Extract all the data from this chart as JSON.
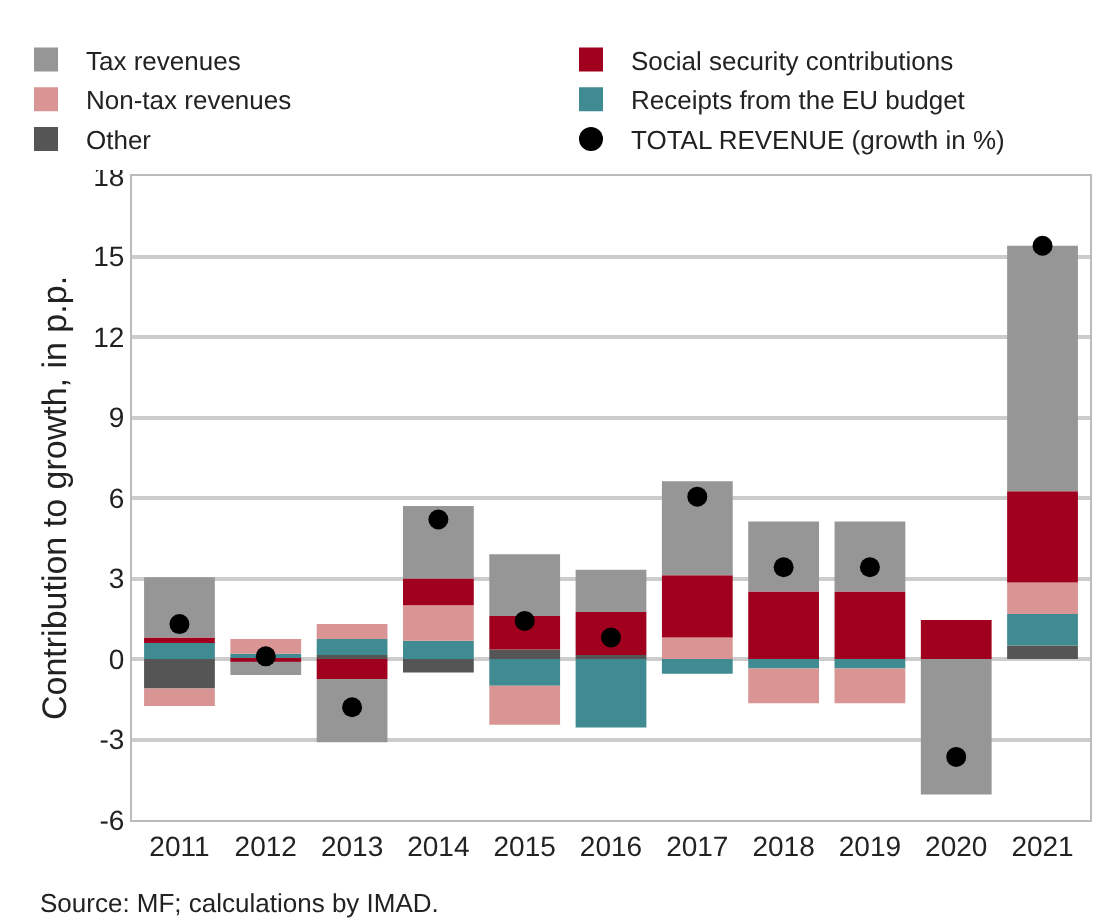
{
  "chart_data": {
    "type": "bar",
    "stacked": true,
    "ylabel": "Contribution to growth, in p.p.",
    "categories": [
      "2011",
      "2012",
      "2013",
      "2014",
      "2015",
      "2016",
      "2017",
      "2018",
      "2019",
      "2020",
      "2021"
    ],
    "series": [
      {
        "name": "Other",
        "color": "#555555",
        "values": [
          -1.1,
          0,
          0.15,
          -0.5,
          0.35,
          0.15,
          0,
          0,
          0,
          0,
          0.5
        ]
      },
      {
        "name": "Receipts from the EU budget",
        "color": "#3f8b91",
        "values": [
          0.6,
          0.2,
          0.6,
          0.68,
          -1.0,
          -2.55,
          -0.55,
          -0.35,
          -0.35,
          0,
          1.18
        ]
      },
      {
        "name": "Non-tax revenues",
        "color": "#d99594",
        "values": [
          -0.65,
          0.55,
          0.55,
          1.32,
          -1.45,
          0,
          0.8,
          -1.3,
          -1.3,
          0,
          1.17
        ]
      },
      {
        "name": "Social security contributions",
        "color": "#a0001e",
        "values": [
          0.2,
          -0.1,
          -0.75,
          1.0,
          1.25,
          1.6,
          2.32,
          2.52,
          2.52,
          1.45,
          3.4
        ]
      },
      {
        "name": "Tax revenues",
        "color": "#969696",
        "values": [
          2.25,
          -0.5,
          -2.35,
          2.7,
          2.3,
          1.58,
          3.5,
          2.6,
          2.6,
          -5.05,
          9.15
        ]
      },
      {
        "name": "TOTAL REVENUE (growth in %)",
        "type": "scatter",
        "color": "#000000",
        "values": [
          1.3,
          0.1,
          -1.8,
          5.2,
          1.42,
          0.8,
          6.05,
          3.42,
          3.42,
          -3.65,
          15.4
        ]
      }
    ],
    "marker": "circle",
    "ylim": [
      -6,
      18
    ],
    "yticks": [
      -6,
      -3,
      0,
      3,
      6,
      9,
      12,
      15,
      18
    ],
    "grid": "y",
    "legend": "top",
    "annotations": [
      "Source: MF; calculations by IMAD."
    ]
  }
}
